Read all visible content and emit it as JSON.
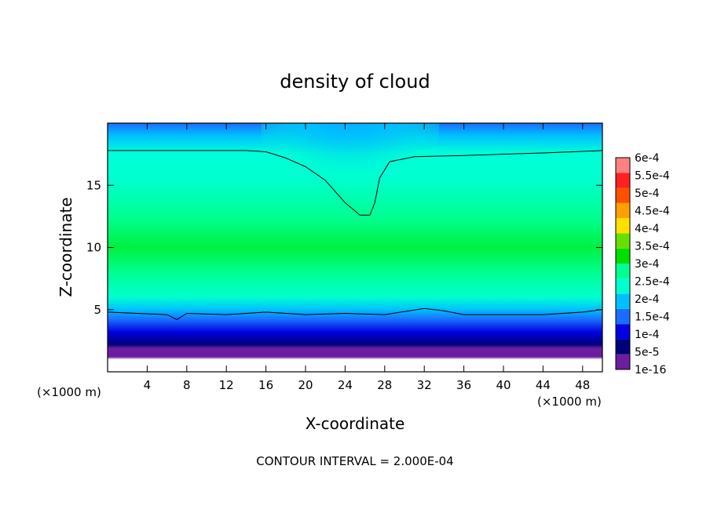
{
  "chart_data": {
    "type": "heatmap",
    "title": "density of cloud",
    "xlabel": "X-coordinate",
    "ylabel": "Z-coordinate",
    "x_unit_label": "(×1000 m)",
    "x_ticks": [
      4,
      8,
      12,
      16,
      20,
      24,
      28,
      32,
      36,
      40,
      44,
      48
    ],
    "y_ticks": [
      5,
      10,
      15
    ],
    "xlim": [
      0,
      50
    ],
    "ylim": [
      0,
      20
    ],
    "footer": "CONTOUR INTERVAL = 2.000E-04",
    "colorbar": {
      "levels": [
        "1e-16",
        "5e-5",
        "1e-4",
        "1.5e-4",
        "2e-4",
        "2.5e-4",
        "3e-4",
        "3.5e-4",
        "4e-4",
        "4.5e-4",
        "5e-4",
        "5.5e-4",
        "6e-4"
      ],
      "colors": [
        "#6b1ea0",
        "#00007a",
        "#0000e0",
        "#1a6dff",
        "#00c0ff",
        "#00ffd0",
        "#00ff90",
        "#00e000",
        "#66e000",
        "#ffe000",
        "#ffa000",
        "#ff5000",
        "#ff2020",
        "#ff8080"
      ]
    },
    "contour_2e4": {
      "upper": [
        [
          0,
          17.8
        ],
        [
          10,
          17.8
        ],
        [
          14,
          17.8
        ],
        [
          16,
          17.7
        ],
        [
          18,
          17.2
        ],
        [
          20,
          16.5
        ],
        [
          22,
          15.4
        ],
        [
          24,
          13.6
        ],
        [
          25.5,
          12.6
        ],
        [
          26.5,
          12.6
        ],
        [
          27,
          13.6
        ],
        [
          27.5,
          15.6
        ],
        [
          28.5,
          16.9
        ],
        [
          31,
          17.3
        ],
        [
          36,
          17.4
        ],
        [
          44,
          17.6
        ],
        [
          50,
          17.8
        ]
      ],
      "lower": [
        [
          0,
          4.8
        ],
        [
          3,
          4.7
        ],
        [
          6,
          4.6
        ],
        [
          7,
          4.2
        ],
        [
          8,
          4.7
        ],
        [
          12,
          4.6
        ],
        [
          16,
          4.8
        ],
        [
          20,
          4.6
        ],
        [
          24,
          4.7
        ],
        [
          28,
          4.6
        ],
        [
          32,
          5.1
        ],
        [
          34,
          4.9
        ],
        [
          36,
          4.6
        ],
        [
          40,
          4.6
        ],
        [
          44,
          4.6
        ],
        [
          48,
          4.8
        ],
        [
          50,
          5.0
        ]
      ]
    }
  }
}
